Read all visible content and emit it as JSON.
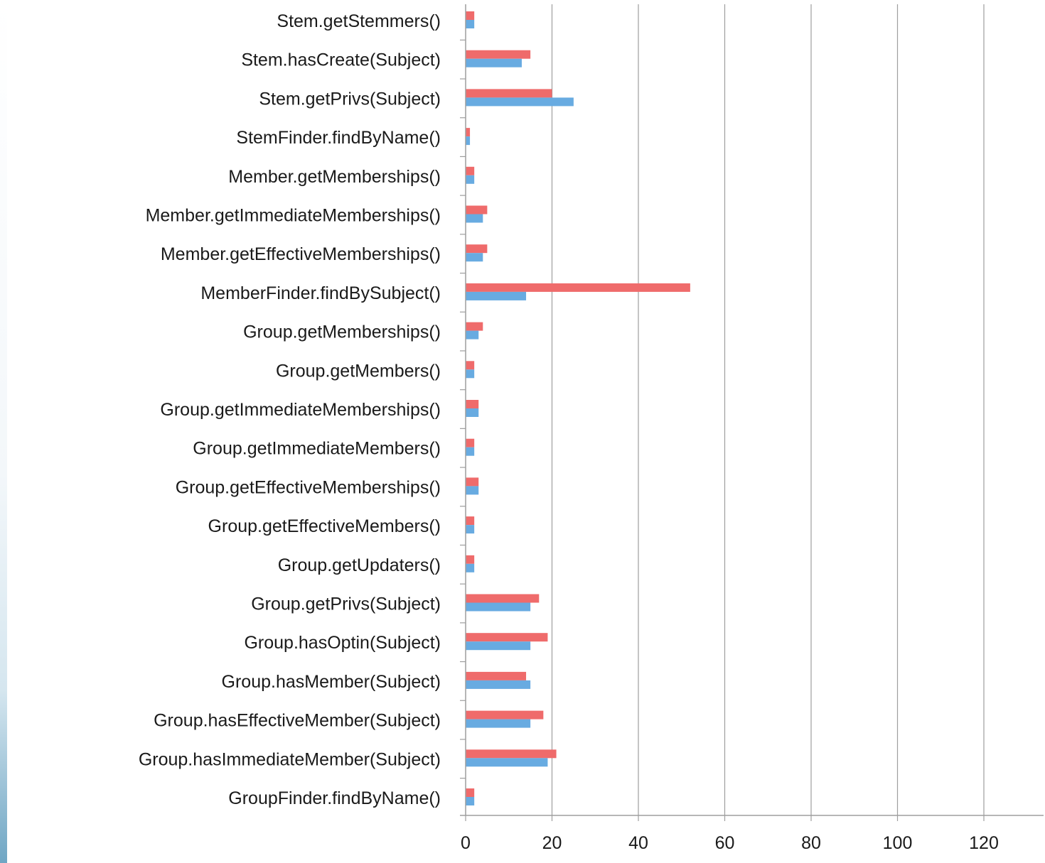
{
  "chart_data": {
    "type": "bar",
    "orientation": "horizontal",
    "title": "",
    "xlabel": "",
    "ylabel": "",
    "xlim": [
      0,
      135
    ],
    "x_ticks": [
      "0",
      "20",
      "40",
      "60",
      "80",
      "100",
      "120"
    ],
    "grid": "vertical",
    "legend": "none",
    "categories": [
      "Stem.getStemmers()",
      "Stem.hasCreate(Subject)",
      "Stem.getPrivs(Subject)",
      "StemFinder.findByName()",
      "Member.getMemberships()",
      "Member.getImmediateMemberships()",
      "Member.getEffectiveMemberships()",
      "MemberFinder.findBySubject()",
      "Group.getMemberships()",
      "Group.getMembers()",
      "Group.getImmediateMemberships()",
      "Group.getImmediateMembers()",
      "Group.getEffectiveMemberships()",
      "Group.getEffectiveMembers()",
      "Group.getUpdaters()",
      "Group.getPrivs(Subject)",
      "Group.hasOptin(Subject)",
      "Group.hasMember(Subject)",
      "Group.hasEffectiveMember(Subject)",
      "Group.hasImmediateMember(Subject)",
      "GroupFinder.findByName()"
    ],
    "series": [
      {
        "color": "#ef6b6b",
        "values": [
          2,
          15,
          20,
          1,
          2,
          5,
          5,
          52,
          4,
          2,
          3,
          2,
          3,
          2,
          2,
          17,
          19,
          14,
          18,
          21,
          2
        ]
      },
      {
        "color": "#68abe1",
        "values": [
          2,
          13,
          25,
          1,
          2,
          4,
          4,
          14,
          3,
          2,
          3,
          2,
          3,
          2,
          2,
          15,
          15,
          15,
          15,
          19,
          2
        ]
      }
    ],
    "gridline_color": "#9e9e9e",
    "axis_color": "#9e9e9e"
  }
}
